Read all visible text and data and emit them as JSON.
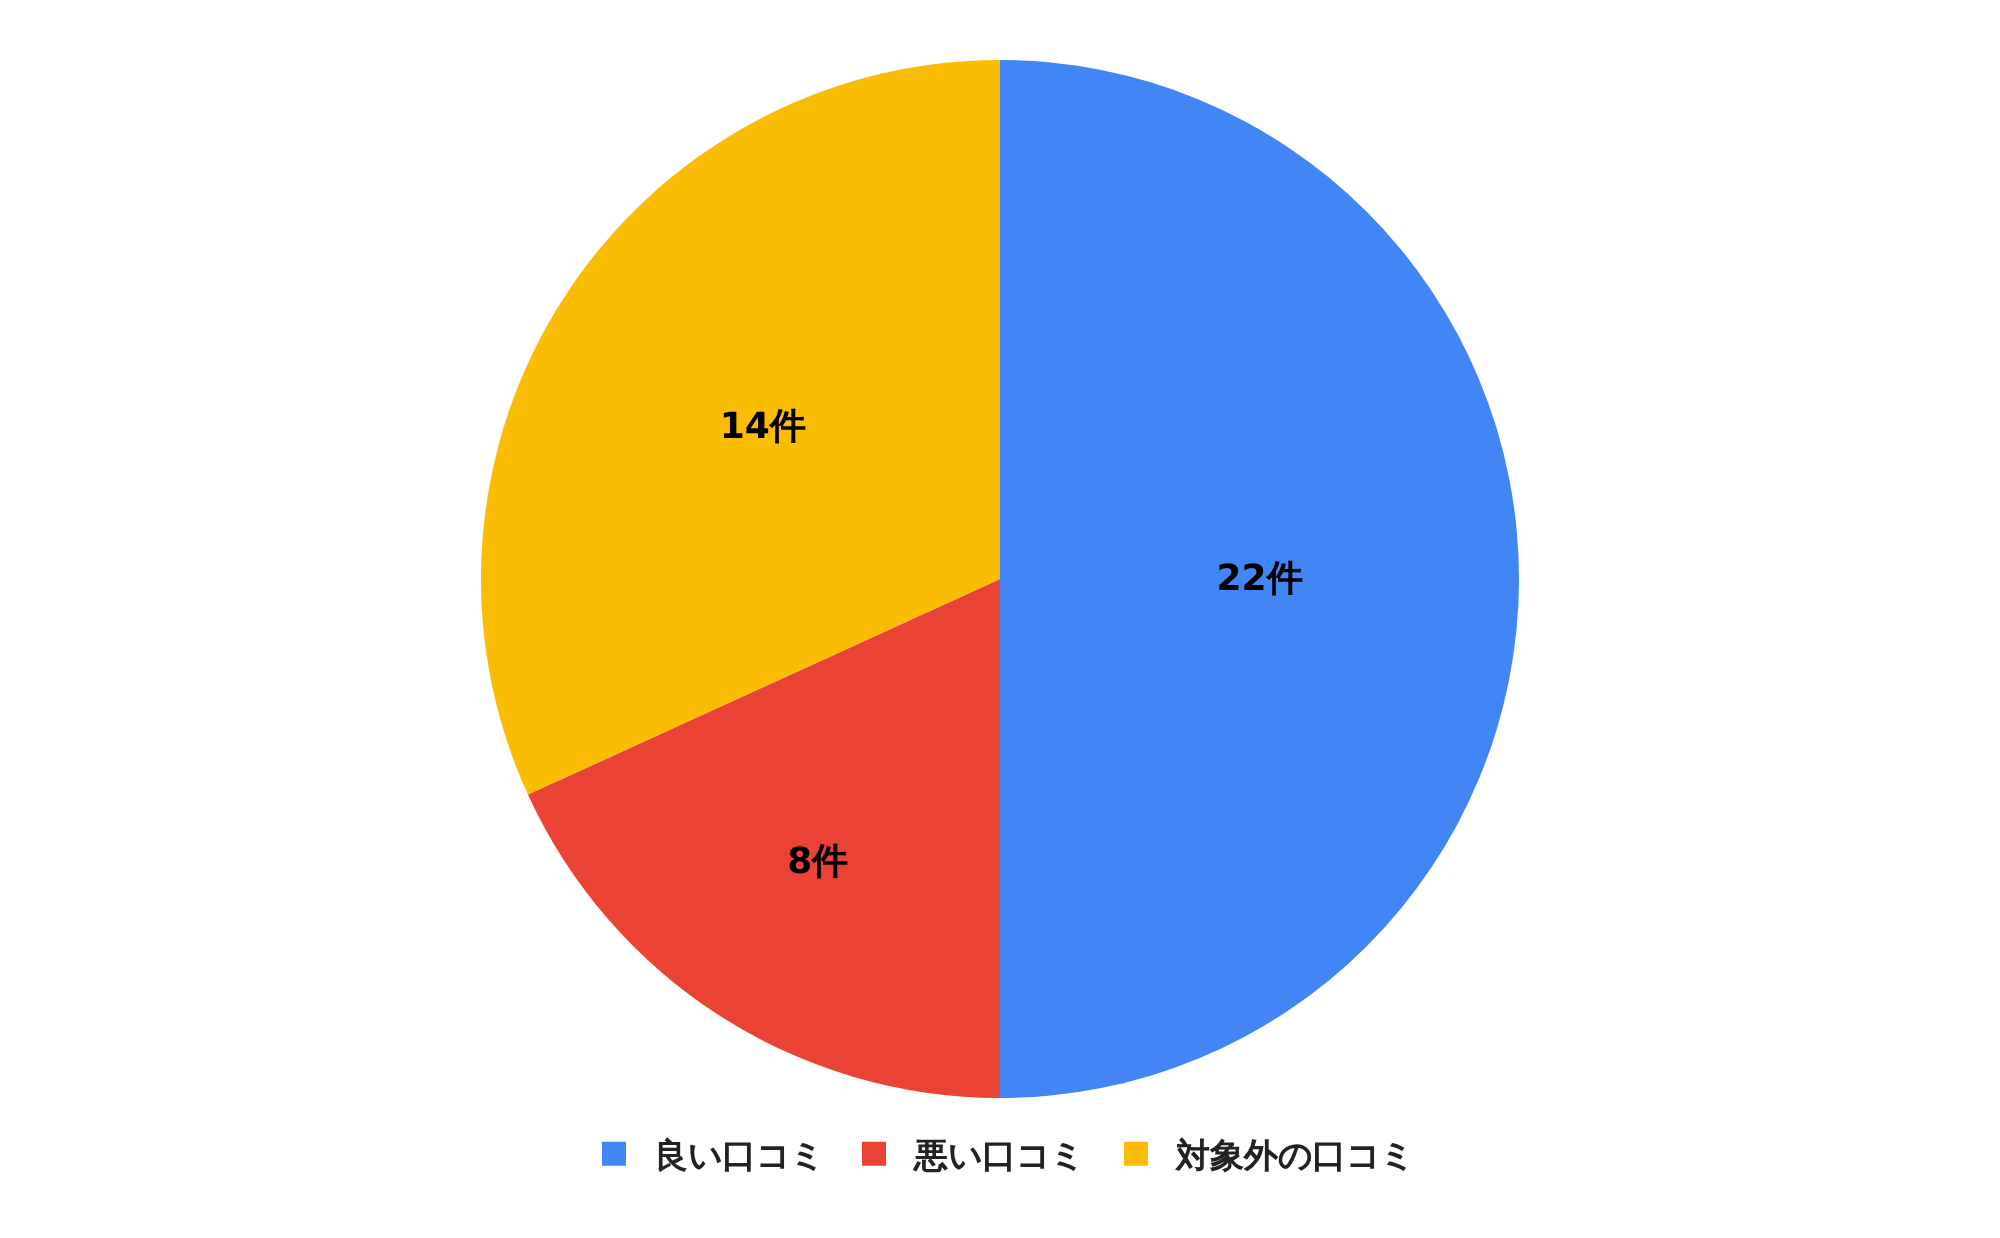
{
  "chart_data": {
    "type": "pie",
    "categories": [
      "良い口コミ",
      "悪い口コミ",
      "対象外の口コミ"
    ],
    "values": [
      22,
      8,
      14
    ],
    "colors": [
      "#4285f4",
      "#ea4335",
      "#fbbc04"
    ],
    "value_labels": [
      "22件",
      "8件",
      "14件"
    ],
    "legend": "bottom"
  }
}
